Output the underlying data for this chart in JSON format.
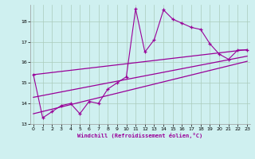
{
  "xlabel": "Windchill (Refroidissement éolien,°C)",
  "bg_color": "#cff0f0",
  "line_color": "#990099",
  "grid_color": "#aaccbb",
  "x_data": [
    0,
    1,
    2,
    3,
    4,
    5,
    6,
    7,
    8,
    9,
    10,
    11,
    12,
    13,
    14,
    15,
    16,
    17,
    18,
    19,
    20,
    21,
    22,
    23
  ],
  "y_main": [
    15.4,
    13.3,
    13.6,
    13.9,
    14.0,
    13.5,
    14.1,
    14.0,
    14.7,
    15.0,
    15.3,
    18.6,
    16.5,
    17.1,
    18.55,
    18.1,
    17.9,
    17.7,
    17.6,
    16.9,
    16.4,
    16.15,
    16.6,
    16.6
  ],
  "trend_lines": [
    {
      "x0": 0,
      "y0": 15.4,
      "x1": 23,
      "y1": 16.62
    },
    {
      "x0": 0,
      "y0": 14.3,
      "x1": 23,
      "y1": 16.3
    },
    {
      "x0": 0,
      "y0": 13.5,
      "x1": 23,
      "y1": 16.05
    }
  ],
  "ylim": [
    13.0,
    18.8
  ],
  "yticks": [
    13,
    14,
    15,
    16,
    17,
    18
  ],
  "xticks": [
    0,
    1,
    2,
    3,
    4,
    5,
    6,
    7,
    8,
    9,
    10,
    11,
    12,
    13,
    14,
    15,
    16,
    17,
    18,
    19,
    20,
    21,
    22,
    23
  ],
  "xlim": [
    -0.3,
    23.3
  ]
}
